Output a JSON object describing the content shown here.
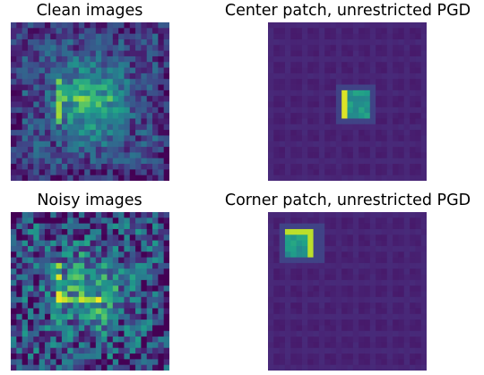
{
  "chart_data": [
    {
      "type": "heatmap",
      "title": "Clean images",
      "grid_rows": 28,
      "grid_cols": 28,
      "colormap": "viridis",
      "pattern": "centered-blob"
    },
    {
      "type": "heatmap",
      "title": "Center patch, unrestricted PGD",
      "grid_rows": 28,
      "grid_cols": 28,
      "colormap": "viridis",
      "pattern": "center-patch"
    },
    {
      "type": "heatmap",
      "title": "Noisy images",
      "grid_rows": 28,
      "grid_cols": 28,
      "colormap": "viridis",
      "pattern": "centered-blob-noisy"
    },
    {
      "type": "heatmap",
      "title": "Corner patch, unrestricted PGD",
      "grid_rows": 28,
      "grid_cols": 28,
      "colormap": "viridis",
      "pattern": "corner-patch"
    }
  ]
}
